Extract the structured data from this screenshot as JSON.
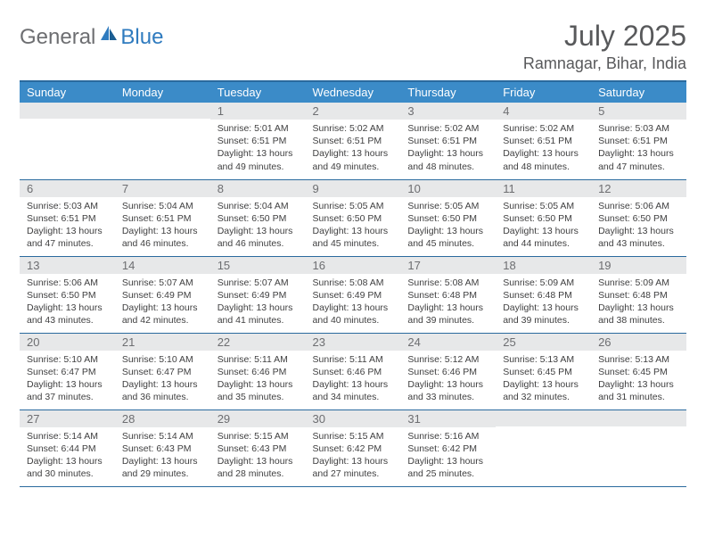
{
  "brand": {
    "general": "General",
    "blue": "Blue"
  },
  "header": {
    "month_title": "July 2025",
    "location": "Ramnagar, Bihar, India"
  },
  "colors": {
    "header_bg": "#3b8bc8",
    "header_border": "#2a6a9e",
    "daynum_bg": "#e7e8e9",
    "text_primary": "#58595b",
    "text_body": "#404041",
    "logo_gray": "#6d6e71",
    "logo_blue": "#2f7bbf"
  },
  "day_names": [
    "Sunday",
    "Monday",
    "Tuesday",
    "Wednesday",
    "Thursday",
    "Friday",
    "Saturday"
  ],
  "weeks": [
    [
      {
        "n": "",
        "sr": "",
        "ss": "",
        "dl": ""
      },
      {
        "n": "",
        "sr": "",
        "ss": "",
        "dl": ""
      },
      {
        "n": "1",
        "sr": "Sunrise: 5:01 AM",
        "ss": "Sunset: 6:51 PM",
        "dl": "Daylight: 13 hours and 49 minutes."
      },
      {
        "n": "2",
        "sr": "Sunrise: 5:02 AM",
        "ss": "Sunset: 6:51 PM",
        "dl": "Daylight: 13 hours and 49 minutes."
      },
      {
        "n": "3",
        "sr": "Sunrise: 5:02 AM",
        "ss": "Sunset: 6:51 PM",
        "dl": "Daylight: 13 hours and 48 minutes."
      },
      {
        "n": "4",
        "sr": "Sunrise: 5:02 AM",
        "ss": "Sunset: 6:51 PM",
        "dl": "Daylight: 13 hours and 48 minutes."
      },
      {
        "n": "5",
        "sr": "Sunrise: 5:03 AM",
        "ss": "Sunset: 6:51 PM",
        "dl": "Daylight: 13 hours and 47 minutes."
      }
    ],
    [
      {
        "n": "6",
        "sr": "Sunrise: 5:03 AM",
        "ss": "Sunset: 6:51 PM",
        "dl": "Daylight: 13 hours and 47 minutes."
      },
      {
        "n": "7",
        "sr": "Sunrise: 5:04 AM",
        "ss": "Sunset: 6:51 PM",
        "dl": "Daylight: 13 hours and 46 minutes."
      },
      {
        "n": "8",
        "sr": "Sunrise: 5:04 AM",
        "ss": "Sunset: 6:50 PM",
        "dl": "Daylight: 13 hours and 46 minutes."
      },
      {
        "n": "9",
        "sr": "Sunrise: 5:05 AM",
        "ss": "Sunset: 6:50 PM",
        "dl": "Daylight: 13 hours and 45 minutes."
      },
      {
        "n": "10",
        "sr": "Sunrise: 5:05 AM",
        "ss": "Sunset: 6:50 PM",
        "dl": "Daylight: 13 hours and 45 minutes."
      },
      {
        "n": "11",
        "sr": "Sunrise: 5:05 AM",
        "ss": "Sunset: 6:50 PM",
        "dl": "Daylight: 13 hours and 44 minutes."
      },
      {
        "n": "12",
        "sr": "Sunrise: 5:06 AM",
        "ss": "Sunset: 6:50 PM",
        "dl": "Daylight: 13 hours and 43 minutes."
      }
    ],
    [
      {
        "n": "13",
        "sr": "Sunrise: 5:06 AM",
        "ss": "Sunset: 6:50 PM",
        "dl": "Daylight: 13 hours and 43 minutes."
      },
      {
        "n": "14",
        "sr": "Sunrise: 5:07 AM",
        "ss": "Sunset: 6:49 PM",
        "dl": "Daylight: 13 hours and 42 minutes."
      },
      {
        "n": "15",
        "sr": "Sunrise: 5:07 AM",
        "ss": "Sunset: 6:49 PM",
        "dl": "Daylight: 13 hours and 41 minutes."
      },
      {
        "n": "16",
        "sr": "Sunrise: 5:08 AM",
        "ss": "Sunset: 6:49 PM",
        "dl": "Daylight: 13 hours and 40 minutes."
      },
      {
        "n": "17",
        "sr": "Sunrise: 5:08 AM",
        "ss": "Sunset: 6:48 PM",
        "dl": "Daylight: 13 hours and 39 minutes."
      },
      {
        "n": "18",
        "sr": "Sunrise: 5:09 AM",
        "ss": "Sunset: 6:48 PM",
        "dl": "Daylight: 13 hours and 39 minutes."
      },
      {
        "n": "19",
        "sr": "Sunrise: 5:09 AM",
        "ss": "Sunset: 6:48 PM",
        "dl": "Daylight: 13 hours and 38 minutes."
      }
    ],
    [
      {
        "n": "20",
        "sr": "Sunrise: 5:10 AM",
        "ss": "Sunset: 6:47 PM",
        "dl": "Daylight: 13 hours and 37 minutes."
      },
      {
        "n": "21",
        "sr": "Sunrise: 5:10 AM",
        "ss": "Sunset: 6:47 PM",
        "dl": "Daylight: 13 hours and 36 minutes."
      },
      {
        "n": "22",
        "sr": "Sunrise: 5:11 AM",
        "ss": "Sunset: 6:46 PM",
        "dl": "Daylight: 13 hours and 35 minutes."
      },
      {
        "n": "23",
        "sr": "Sunrise: 5:11 AM",
        "ss": "Sunset: 6:46 PM",
        "dl": "Daylight: 13 hours and 34 minutes."
      },
      {
        "n": "24",
        "sr": "Sunrise: 5:12 AM",
        "ss": "Sunset: 6:46 PM",
        "dl": "Daylight: 13 hours and 33 minutes."
      },
      {
        "n": "25",
        "sr": "Sunrise: 5:13 AM",
        "ss": "Sunset: 6:45 PM",
        "dl": "Daylight: 13 hours and 32 minutes."
      },
      {
        "n": "26",
        "sr": "Sunrise: 5:13 AM",
        "ss": "Sunset: 6:45 PM",
        "dl": "Daylight: 13 hours and 31 minutes."
      }
    ],
    [
      {
        "n": "27",
        "sr": "Sunrise: 5:14 AM",
        "ss": "Sunset: 6:44 PM",
        "dl": "Daylight: 13 hours and 30 minutes."
      },
      {
        "n": "28",
        "sr": "Sunrise: 5:14 AM",
        "ss": "Sunset: 6:43 PM",
        "dl": "Daylight: 13 hours and 29 minutes."
      },
      {
        "n": "29",
        "sr": "Sunrise: 5:15 AM",
        "ss": "Sunset: 6:43 PM",
        "dl": "Daylight: 13 hours and 28 minutes."
      },
      {
        "n": "30",
        "sr": "Sunrise: 5:15 AM",
        "ss": "Sunset: 6:42 PM",
        "dl": "Daylight: 13 hours and 27 minutes."
      },
      {
        "n": "31",
        "sr": "Sunrise: 5:16 AM",
        "ss": "Sunset: 6:42 PM",
        "dl": "Daylight: 13 hours and 25 minutes."
      },
      {
        "n": "",
        "sr": "",
        "ss": "",
        "dl": ""
      },
      {
        "n": "",
        "sr": "",
        "ss": "",
        "dl": ""
      }
    ]
  ]
}
